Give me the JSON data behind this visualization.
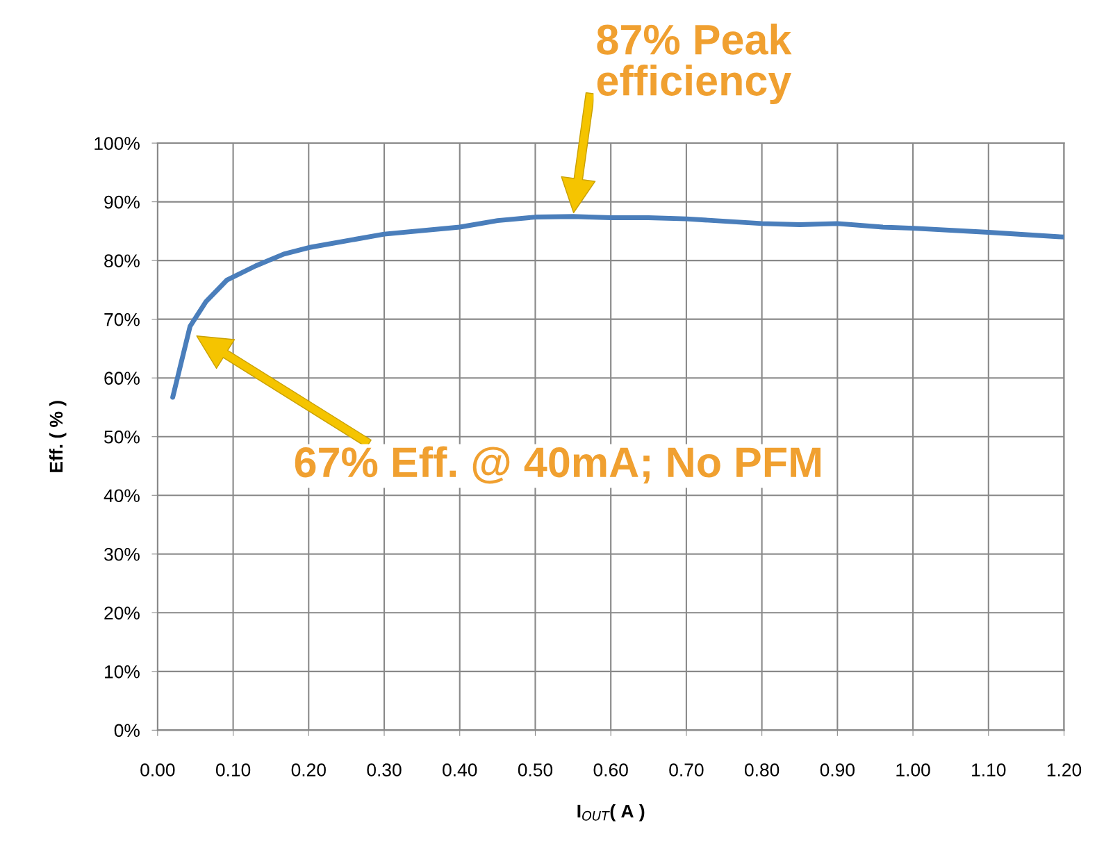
{
  "chart_data": {
    "type": "line",
    "xlabel": "I$_{OUT}$( A )",
    "ylabel": "Eff. ( % )",
    "x": [
      0.02,
      0.043,
      0.064,
      0.092,
      0.13,
      0.167,
      0.2,
      0.3,
      0.4,
      0.45,
      0.5,
      0.55,
      0.6,
      0.65,
      0.7,
      0.8,
      0.85,
      0.9,
      0.96,
      1.0,
      1.1,
      1.2
    ],
    "series": [
      {
        "color": "#4a7ebb",
        "values": [
          56.7,
          68.8,
          73.0,
          76.7,
          79.1,
          81.1,
          82.2,
          84.5,
          85.7,
          86.8,
          87.4,
          87.5,
          87.3,
          87.3,
          87.1,
          86.3,
          86.1,
          86.3,
          85.7,
          85.5,
          84.8,
          84.0
        ]
      }
    ],
    "xlim": [
      0,
      1.2
    ],
    "ylim": [
      0,
      100
    ],
    "xticks": [
      {
        "value": 0,
        "label": "0.00"
      },
      {
        "value": 0.1,
        "label": "0.10"
      },
      {
        "value": 0.2,
        "label": "0.20"
      },
      {
        "value": 0.3,
        "label": "0.30"
      },
      {
        "value": 0.4,
        "label": "0.40"
      },
      {
        "value": 0.5,
        "label": "0.50"
      },
      {
        "value": 0.6,
        "label": "0.60"
      },
      {
        "value": 0.7,
        "label": "0.70"
      },
      {
        "value": 0.8,
        "label": "0.80"
      },
      {
        "value": 0.9,
        "label": "0.90"
      },
      {
        "value": 1.0,
        "label": "1.00"
      },
      {
        "value": 1.1,
        "label": "1.10"
      },
      {
        "value": 1.2,
        "label": "1.20"
      }
    ],
    "yticks": [
      {
        "value": 0,
        "label": "0%"
      },
      {
        "value": 10,
        "label": "10%"
      },
      {
        "value": 20,
        "label": "20%"
      },
      {
        "value": 30,
        "label": "30%"
      },
      {
        "value": 40,
        "label": "40%"
      },
      {
        "value": 50,
        "label": "50%"
      },
      {
        "value": 60,
        "label": "60%"
      },
      {
        "value": 70,
        "label": "70%"
      },
      {
        "value": 80,
        "label": "80%"
      },
      {
        "value": 90,
        "label": "90%"
      },
      {
        "value": 100,
        "label": "100%"
      }
    ],
    "grid": true,
    "marker": "none",
    "line_style": "solid",
    "annotations": [
      {
        "text": "87% Peak\nefficiency",
        "x": 0.55,
        "y": 87.5
      },
      "67% Eff. @ 40mA; No PFM"
    ]
  }
}
